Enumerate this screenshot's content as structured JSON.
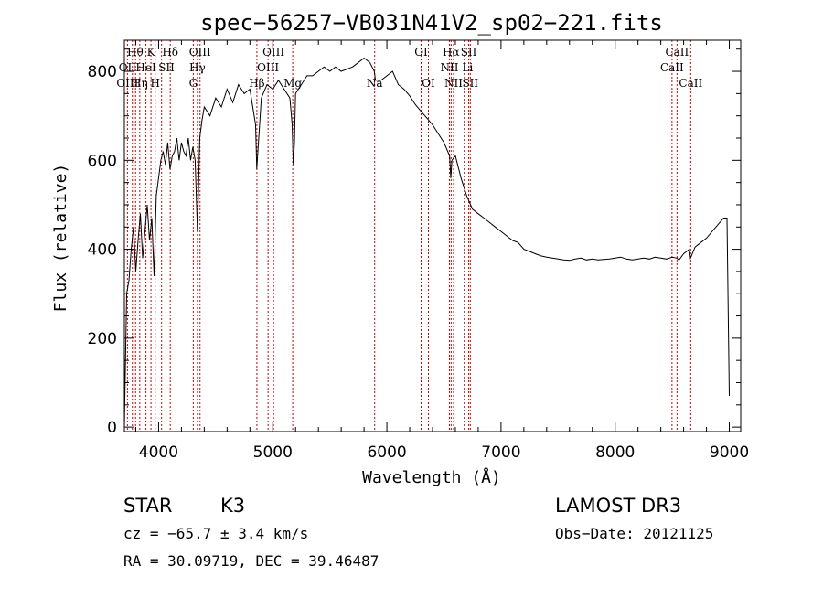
{
  "chart_data": {
    "type": "line",
    "title": "spec−56257−VB031N41V2_sp02−221.fits",
    "xlabel": "Wavelength (Å)",
    "ylabel": "Flux (relative)",
    "xlim": [
      3700,
      9100
    ],
    "ylim": [
      -10,
      870
    ],
    "xticks": [
      4000,
      5000,
      6000,
      7000,
      8000,
      9000
    ],
    "yticks": [
      0,
      200,
      400,
      600,
      800
    ],
    "grid": false,
    "series": [
      {
        "color": "#000000",
        "x": [
          3700,
          3720,
          3740,
          3760,
          3780,
          3800,
          3820,
          3840,
          3860,
          3880,
          3900,
          3920,
          3940,
          3960,
          3980,
          4000,
          4020,
          4040,
          4060,
          4080,
          4100,
          4120,
          4140,
          4160,
          4180,
          4200,
          4220,
          4240,
          4260,
          4280,
          4300,
          4320,
          4340,
          4360,
          4380,
          4400,
          4450,
          4500,
          4550,
          4600,
          4650,
          4700,
          4750,
          4800,
          4850,
          4860,
          4870,
          4900,
          4950,
          5000,
          5050,
          5100,
          5150,
          5170,
          5180,
          5190,
          5200,
          5250,
          5300,
          5350,
          5400,
          5450,
          5500,
          5550,
          5600,
          5650,
          5700,
          5750,
          5800,
          5850,
          5890,
          5900,
          5950,
          6000,
          6050,
          6100,
          6150,
          6200,
          6250,
          6300,
          6350,
          6400,
          6450,
          6500,
          6550,
          6560,
          6570,
          6600,
          6650,
          6700,
          6750,
          6800,
          6850,
          6900,
          6950,
          7000,
          7050,
          7100,
          7150,
          7200,
          7250,
          7300,
          7350,
          7400,
          7450,
          7500,
          7550,
          7600,
          7650,
          7700,
          7750,
          7800,
          7850,
          7900,
          7950,
          8000,
          8050,
          8100,
          8150,
          8200,
          8250,
          8300,
          8350,
          8400,
          8450,
          8500,
          8540,
          8560,
          8600,
          8650,
          8660,
          8700,
          8750,
          8800,
          8850,
          8900,
          8950,
          8980,
          9000
        ],
        "y": [
          0,
          300,
          330,
          400,
          450,
          350,
          420,
          480,
          380,
          440,
          500,
          420,
          470,
          340,
          520,
          560,
          600,
          620,
          590,
          640,
          580,
          610,
          620,
          650,
          600,
          640,
          620,
          610,
          650,
          600,
          630,
          600,
          440,
          650,
          690,
          720,
          700,
          740,
          720,
          760,
          730,
          770,
          750,
          760,
          680,
          580,
          620,
          740,
          770,
          760,
          780,
          760,
          740,
          680,
          590,
          640,
          750,
          770,
          790,
          790,
          800,
          810,
          800,
          810,
          800,
          805,
          810,
          820,
          830,
          820,
          800,
          780,
          780,
          790,
          800,
          770,
          760,
          745,
          725,
          710,
          695,
          680,
          660,
          640,
          610,
          560,
          600,
          610,
          560,
          520,
          490,
          480,
          470,
          460,
          450,
          440,
          430,
          420,
          415,
          400,
          395,
          390,
          385,
          382,
          380,
          378,
          376,
          375,
          378,
          380,
          376,
          378,
          376,
          377,
          378,
          380,
          382,
          378,
          376,
          378,
          380,
          378,
          382,
          380,
          378,
          382,
          380,
          376,
          390,
          400,
          380,
          405,
          415,
          425,
          440,
          455,
          470,
          470,
          70
        ]
      }
    ],
    "annotations": {
      "line_markers": [
        {
          "x": 3727
        },
        {
          "x": 3770
        },
        {
          "x": 3798
        },
        {
          "x": 3835
        },
        {
          "x": 3889
        },
        {
          "x": 3933
        },
        {
          "x": 3970
        },
        {
          "x": 4026
        },
        {
          "x": 4102
        },
        {
          "x": 4304
        },
        {
          "x": 4340
        },
        {
          "x": 4363
        },
        {
          "x": 4861
        },
        {
          "x": 4959
        },
        {
          "x": 5007
        },
        {
          "x": 5175
        },
        {
          "x": 5893
        },
        {
          "x": 6300
        },
        {
          "x": 6364
        },
        {
          "x": 6548
        },
        {
          "x": 6563
        },
        {
          "x": 6584
        },
        {
          "x": 6678
        },
        {
          "x": 6717
        },
        {
          "x": 6731
        },
        {
          "x": 8498
        },
        {
          "x": 8542
        },
        {
          "x": 8662
        }
      ],
      "line_labels": [
        {
          "text": "Hθ",
          "x": 3795,
          "row": 1
        },
        {
          "text": "K",
          "x": 3933,
          "row": 1
        },
        {
          "text": "Hδ",
          "x": 4102,
          "row": 1
        },
        {
          "text": "OIII",
          "x": 4363,
          "row": 1
        },
        {
          "text": "OIII",
          "x": 5007,
          "row": 1
        },
        {
          "text": "OI",
          "x": 6300,
          "row": 1
        },
        {
          "text": "Hα",
          "x": 6563,
          "row": 1
        },
        {
          "text": "SII",
          "x": 6717,
          "row": 1
        },
        {
          "text": "CaII",
          "x": 8542,
          "row": 1
        },
        {
          "text": "OII",
          "x": 3727,
          "row": 2
        },
        {
          "text": "HeI",
          "x": 3889,
          "row": 2
        },
        {
          "text": "SII",
          "x": 4069,
          "row": 2
        },
        {
          "text": "Hγ",
          "x": 4340,
          "row": 2
        },
        {
          "text": "OIII",
          "x": 4959,
          "row": 2
        },
        {
          "text": "NII",
          "x": 6548,
          "row": 2
        },
        {
          "text": "Li",
          "x": 6708,
          "row": 2
        },
        {
          "text": "CaII",
          "x": 8498,
          "row": 2
        },
        {
          "text": "OIII",
          "x": 3727,
          "row": 3
        },
        {
          "text": "Hη",
          "x": 3835,
          "row": 3
        },
        {
          "text": "H",
          "x": 3970,
          "row": 3
        },
        {
          "text": "G",
          "x": 4304,
          "row": 3
        },
        {
          "text": "Hβ",
          "x": 4861,
          "row": 3
        },
        {
          "text": "Mg",
          "x": 5175,
          "row": 3
        },
        {
          "text": "Na",
          "x": 5893,
          "row": 3
        },
        {
          "text": "OI",
          "x": 6364,
          "row": 3
        },
        {
          "text": "NII",
          "x": 6584,
          "row": 3
        },
        {
          "text": "SII",
          "x": 6731,
          "row": 3
        },
        {
          "text": "CaII",
          "x": 8662,
          "row": 3
        }
      ],
      "marker_color": "#cc0000"
    }
  },
  "info": {
    "class": "STAR",
    "subclass": "K3",
    "survey": "LAMOST DR3",
    "cz": "cz = −65.7 ± 3.4 km/s",
    "obs_date": "Obs−Date: 20121125",
    "radec": "RA =  30.09719, DEC =  39.46487"
  }
}
